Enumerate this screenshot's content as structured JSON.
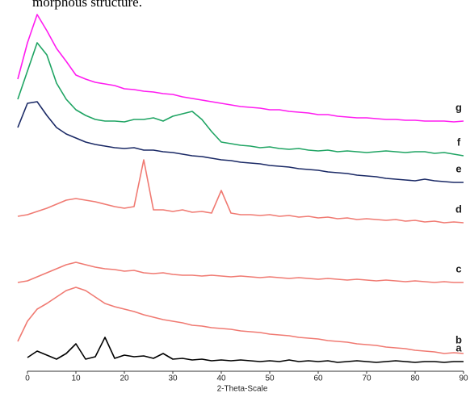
{
  "chart_data": {
    "type": "line",
    "annotation": "morphous structure.",
    "xlabel": "2-Theta-Scale",
    "xlim": [
      -3,
      91
    ],
    "xticks": [
      0,
      10,
      20,
      30,
      40,
      50,
      60,
      70,
      80,
      90
    ],
    "ylim": [
      0,
      450
    ],
    "x": [
      -2,
      0,
      2,
      4,
      6,
      8,
      10,
      12,
      14,
      16,
      18,
      20,
      22,
      24,
      26,
      28,
      30,
      32,
      34,
      36,
      38,
      40,
      42,
      44,
      46,
      48,
      50,
      52,
      54,
      56,
      58,
      60,
      62,
      64,
      66,
      68,
      70,
      72,
      74,
      76,
      78,
      80,
      82,
      84,
      86,
      88,
      90
    ],
    "series": [
      {
        "name": "a",
        "color": "#000000",
        "values": [
          null,
          15,
          23,
          18,
          13,
          20,
          32,
          13,
          16,
          40,
          14,
          18,
          16,
          17,
          14,
          20,
          13,
          14,
          12,
          13,
          11,
          12,
          11,
          12,
          11,
          10,
          11,
          10,
          12,
          10,
          11,
          10,
          11,
          9,
          10,
          11,
          10,
          9,
          10,
          11,
          10,
          9,
          10,
          10,
          9,
          10,
          10
        ]
      },
      {
        "name": "b",
        "color": "#f07a72",
        "values": [
          35,
          60,
          75,
          82,
          90,
          98,
          102,
          98,
          90,
          82,
          78,
          75,
          72,
          68,
          65,
          62,
          60,
          58,
          55,
          54,
          52,
          51,
          50,
          48,
          47,
          46,
          44,
          43,
          42,
          40,
          39,
          38,
          36,
          35,
          34,
          32,
          31,
          30,
          28,
          27,
          26,
          24,
          23,
          22,
          20,
          21,
          20
        ]
      },
      {
        "name": "c",
        "color": "#f07a72",
        "values": [
          108,
          110,
          115,
          120,
          125,
          130,
          133,
          130,
          127,
          125,
          124,
          122,
          123,
          120,
          119,
          120,
          118,
          117,
          117,
          116,
          117,
          116,
          115,
          116,
          115,
          114,
          115,
          114,
          113,
          114,
          113,
          112,
          113,
          112,
          111,
          112,
          111,
          110,
          111,
          110,
          109,
          110,
          109,
          108,
          109,
          108,
          108
        ]
      },
      {
        "name": "d",
        "color": "#f07a72",
        "values": [
          190,
          192,
          196,
          200,
          205,
          210,
          212,
          210,
          208,
          205,
          202,
          200,
          202,
          260,
          198,
          198,
          196,
          198,
          195,
          196,
          194,
          222,
          194,
          192,
          192,
          191,
          192,
          190,
          191,
          189,
          190,
          188,
          189,
          187,
          188,
          186,
          187,
          186,
          185,
          186,
          184,
          185,
          183,
          184,
          182,
          183,
          182
        ]
      },
      {
        "name": "e",
        "color": "#1b2a66",
        "values": [
          300,
          330,
          332,
          315,
          300,
          292,
          287,
          282,
          279,
          277,
          275,
          274,
          275,
          272,
          272,
          270,
          269,
          267,
          265,
          264,
          262,
          260,
          259,
          257,
          256,
          255,
          253,
          252,
          251,
          249,
          248,
          247,
          245,
          244,
          243,
          241,
          240,
          239,
          237,
          236,
          235,
          234,
          236,
          234,
          233,
          232,
          232
        ]
      },
      {
        "name": "f",
        "color": "#1fa463",
        "values": [
          335,
          370,
          405,
          390,
          355,
          335,
          322,
          315,
          310,
          308,
          308,
          307,
          310,
          310,
          312,
          308,
          314,
          317,
          320,
          310,
          295,
          282,
          280,
          278,
          277,
          275,
          276,
          274,
          273,
          274,
          272,
          271,
          272,
          270,
          271,
          270,
          269,
          270,
          271,
          270,
          269,
          270,
          270,
          268,
          269,
          267,
          265
        ]
      },
      {
        "name": "g",
        "color": "#ff1cf0",
        "values": [
          360,
          405,
          440,
          420,
          398,
          382,
          365,
          360,
          356,
          354,
          352,
          348,
          347,
          345,
          344,
          342,
          341,
          338,
          336,
          334,
          332,
          330,
          328,
          326,
          325,
          324,
          322,
          322,
          320,
          319,
          318,
          316,
          316,
          314,
          313,
          312,
          312,
          311,
          310,
          310,
          309,
          309,
          308,
          308,
          308,
          307,
          308
        ]
      }
    ]
  }
}
